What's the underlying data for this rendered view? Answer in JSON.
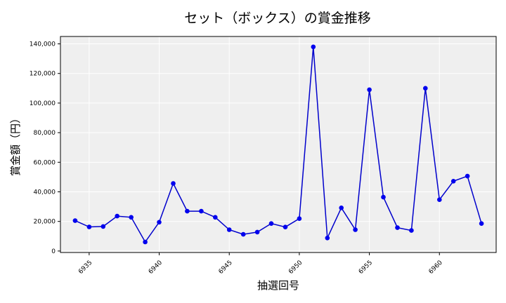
{
  "chart_data": {
    "type": "line",
    "title": "セット（ボックス）の賞金推移",
    "xlabel": "抽選回号",
    "ylabel": "賞金額（円）",
    "xlim": [
      6932.95,
      6964.05
    ],
    "ylim": [
      -1000,
      145000
    ],
    "x_ticks": [
      6935,
      6940,
      6945,
      6950,
      6955,
      6960
    ],
    "y_ticks": [
      0,
      20000,
      40000,
      60000,
      80000,
      100000,
      120000,
      140000
    ],
    "y_tick_labels": [
      "0",
      "20,000",
      "40,000",
      "60,000",
      "80,000",
      "100,000",
      "120,000",
      "140,000"
    ],
    "grid": true,
    "colors": {
      "line": "#0000cc",
      "marker": "#0000ee",
      "plot_bg": "#efefef",
      "grid": "#ffffff"
    },
    "series": [
      {
        "x": [
          6934,
          6935,
          6936,
          6937,
          6938,
          6939,
          6940,
          6941,
          6942,
          6943,
          6944,
          6945,
          6946,
          6947,
          6948,
          6949,
          6950,
          6951,
          6952,
          6953,
          6954,
          6955,
          6956,
          6957,
          6958,
          6959,
          6960,
          6961,
          6962,
          6963
        ],
        "values": [
          20500,
          16300,
          16600,
          23600,
          22800,
          6100,
          19500,
          45700,
          26900,
          26900,
          22800,
          14400,
          11300,
          12800,
          18600,
          16200,
          21900,
          138000,
          8800,
          29200,
          14400,
          109000,
          36400,
          15800,
          13900,
          110000,
          34700,
          47200,
          50600,
          18600
        ]
      }
    ]
  }
}
